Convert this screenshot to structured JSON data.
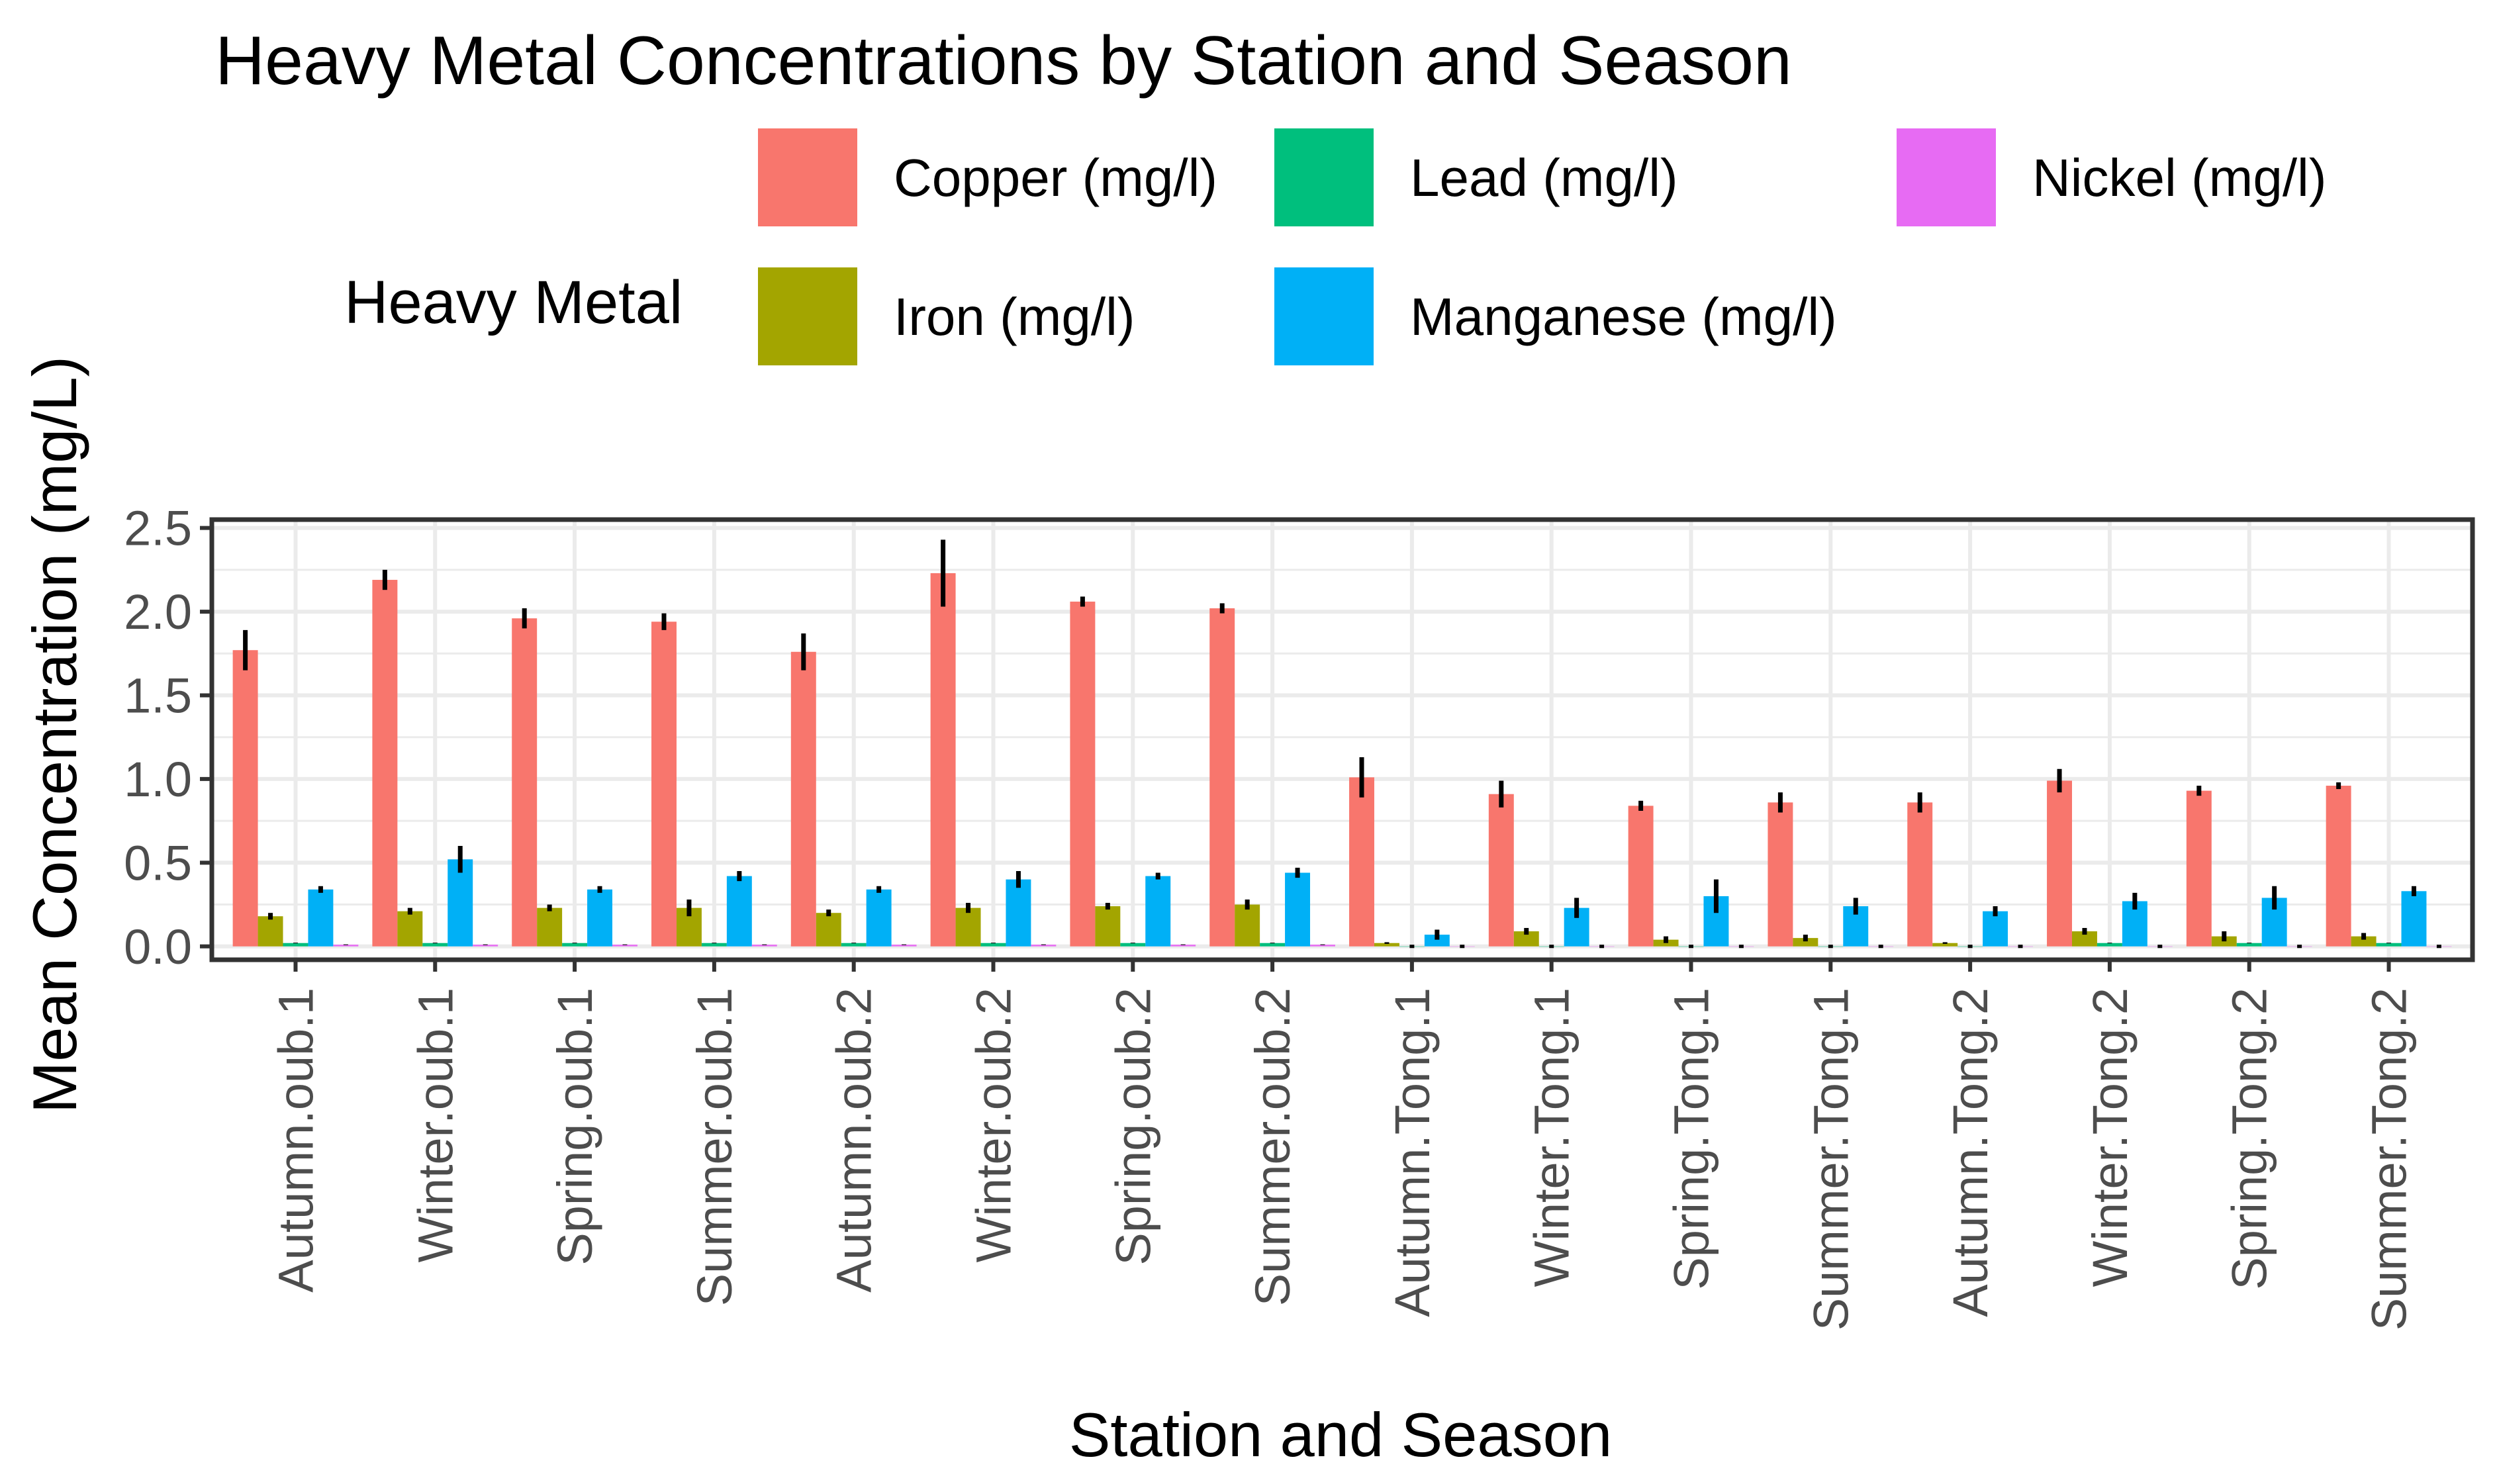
{
  "chart_data": {
    "type": "bar",
    "title": "Heavy Metal Concentrations by Station and Season",
    "xlabel": "Station and Season",
    "ylabel": "Mean Concentration (mg/L)",
    "ylim": [
      -0.08,
      2.55
    ],
    "yticks": [
      0.0,
      0.5,
      1.0,
      1.5,
      2.0,
      2.5
    ],
    "ytick_labels": [
      "0.0",
      "0.5",
      "1.0",
      "1.5",
      "2.0",
      "2.5"
    ],
    "grid": true,
    "legend_title": "Heavy Metal",
    "legend_position": "top",
    "categories": [
      "Autumn.oub.1",
      "Winter.oub.1",
      "Spring.oub.1",
      "Summer.oub.1",
      "Autumn.oub.2",
      "Winter.oub.2",
      "Spring.oub.2",
      "Summer.oub.2",
      "Autumn.Tong.1",
      "Winter.Tong.1",
      "Spring.Tong.1",
      "Summer.Tong.1",
      "Autumn.Tong.2",
      "Winter.Tong.2",
      "Spring.Tong.2",
      "Summer.Tong.2"
    ],
    "series": [
      {
        "name": "Copper (mg/l)",
        "color": "#F8766D",
        "values": [
          1.77,
          2.19,
          1.96,
          1.94,
          1.76,
          2.23,
          2.06,
          2.02,
          1.01,
          0.91,
          0.84,
          0.86,
          0.86,
          0.99,
          0.93,
          0.96
        ],
        "errors": [
          0.12,
          0.06,
          0.06,
          0.05,
          0.11,
          0.2,
          0.03,
          0.03,
          0.12,
          0.08,
          0.03,
          0.06,
          0.06,
          0.07,
          0.03,
          0.02
        ]
      },
      {
        "name": "Iron (mg/l)",
        "color": "#A3A500",
        "values": [
          0.18,
          0.21,
          0.23,
          0.23,
          0.2,
          0.23,
          0.24,
          0.25,
          0.02,
          0.09,
          0.04,
          0.05,
          0.02,
          0.09,
          0.06,
          0.06
        ],
        "errors": [
          0.02,
          0.02,
          0.02,
          0.05,
          0.02,
          0.03,
          0.02,
          0.03,
          0.005,
          0.02,
          0.02,
          0.02,
          0.005,
          0.02,
          0.03,
          0.02
        ]
      },
      {
        "name": "Lead (mg/l)",
        "color": "#00BF7D",
        "values": [
          0.02,
          0.02,
          0.02,
          0.02,
          0.02,
          0.02,
          0.02,
          0.02,
          0.0,
          0.0,
          0.0,
          0.0,
          0.0,
          0.02,
          0.02,
          0.02
        ],
        "errors": [
          0.002,
          0.002,
          0.002,
          0.002,
          0.002,
          0.002,
          0.002,
          0.002,
          0.01,
          0.01,
          0.01,
          0.01,
          0.01,
          0.002,
          0.002,
          0.002
        ]
      },
      {
        "name": "Manganese (mg/l)",
        "color": "#00B0F6",
        "values": [
          0.34,
          0.52,
          0.34,
          0.42,
          0.34,
          0.4,
          0.42,
          0.44,
          0.07,
          0.23,
          0.3,
          0.24,
          0.21,
          0.27,
          0.29,
          0.33
        ],
        "errors": [
          0.02,
          0.08,
          0.02,
          0.03,
          0.02,
          0.05,
          0.02,
          0.03,
          0.03,
          0.06,
          0.1,
          0.05,
          0.03,
          0.05,
          0.07,
          0.03
        ]
      },
      {
        "name": "Nickel (mg/l)",
        "color": "#E76BF3",
        "values": [
          0.01,
          0.01,
          0.01,
          0.01,
          0.01,
          0.01,
          0.01,
          0.01,
          0.0,
          0.0,
          0.0,
          0.0,
          0.0,
          0.0,
          0.0,
          0.0
        ],
        "errors": [
          0.002,
          0.002,
          0.002,
          0.002,
          0.002,
          0.002,
          0.002,
          0.002,
          0.01,
          0.01,
          0.01,
          0.01,
          0.01,
          0.01,
          0.01,
          0.01
        ]
      }
    ],
    "legend_order": [
      "Copper (mg/l)",
      "Lead (mg/l)",
      "Nickel (mg/l)",
      "Iron (mg/l)",
      "Manganese (mg/l)"
    ]
  }
}
